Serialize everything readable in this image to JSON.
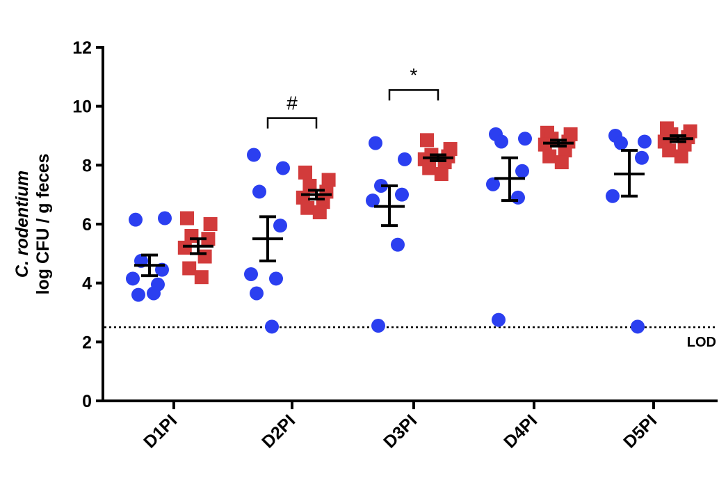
{
  "chart_data": {
    "type": "scatter",
    "ylabel_line1": "C. rodentium",
    "ylabel_line2": "log CFU / g feces",
    "ylim": [
      0,
      12
    ],
    "yticks": [
      0,
      2,
      4,
      6,
      8,
      10,
      12
    ],
    "categories": [
      "D1PI",
      "D2PI",
      "D3PI",
      "D4PI",
      "D5PI"
    ],
    "legend": "none",
    "grid": false,
    "lod": {
      "value": 2.5,
      "label": "LOD"
    },
    "series": [
      {
        "color": "#2b3ff0",
        "marker": "circle",
        "points": [
          [
            6.15,
            6.2,
            4.75,
            4.45,
            4.15,
            3.95,
            3.6,
            3.65
          ],
          [
            8.35,
            7.9,
            7.1,
            5.95,
            4.3,
            4.15,
            3.65,
            2.52
          ],
          [
            8.75,
            8.2,
            7.3,
            7.0,
            6.8,
            5.3,
            2.55
          ],
          [
            9.05,
            8.9,
            8.8,
            7.8,
            7.35,
            6.9,
            2.75
          ],
          [
            9.0,
            8.8,
            8.75,
            8.25,
            6.95,
            2.52
          ]
        ],
        "mean": [
          4.6,
          5.5,
          6.6,
          7.55,
          7.7
        ],
        "err_low": [
          4.25,
          4.75,
          5.95,
          6.8,
          6.95
        ],
        "err_high": [
          4.95,
          6.25,
          7.3,
          8.25,
          8.5
        ]
      },
      {
        "color": "#d23b3b",
        "marker": "square",
        "points": [
          [
            6.2,
            6.0,
            5.6,
            5.5,
            5.2,
            4.9,
            4.5,
            4.2
          ],
          [
            7.75,
            7.5,
            7.3,
            7.1,
            6.9,
            6.75,
            6.55,
            6.4
          ],
          [
            8.85,
            8.55,
            8.35,
            8.3,
            8.2,
            8.1,
            7.9,
            7.7
          ],
          [
            9.1,
            9.05,
            8.9,
            8.8,
            8.7,
            8.5,
            8.3,
            8.1
          ],
          [
            9.25,
            9.15,
            9.05,
            8.95,
            8.8,
            8.7,
            8.5,
            8.3
          ]
        ],
        "mean": [
          5.25,
          7.0,
          8.25,
          8.75,
          8.9
        ],
        "err_low": [
          5.0,
          6.85,
          8.15,
          8.65,
          8.8
        ],
        "err_high": [
          5.5,
          7.15,
          8.35,
          8.85,
          9.0
        ]
      }
    ],
    "annotations": [
      {
        "category": "D2PI",
        "text": "#",
        "y": 9.6
      },
      {
        "category": "D3PI",
        "text": "*",
        "y": 10.55
      }
    ]
  }
}
